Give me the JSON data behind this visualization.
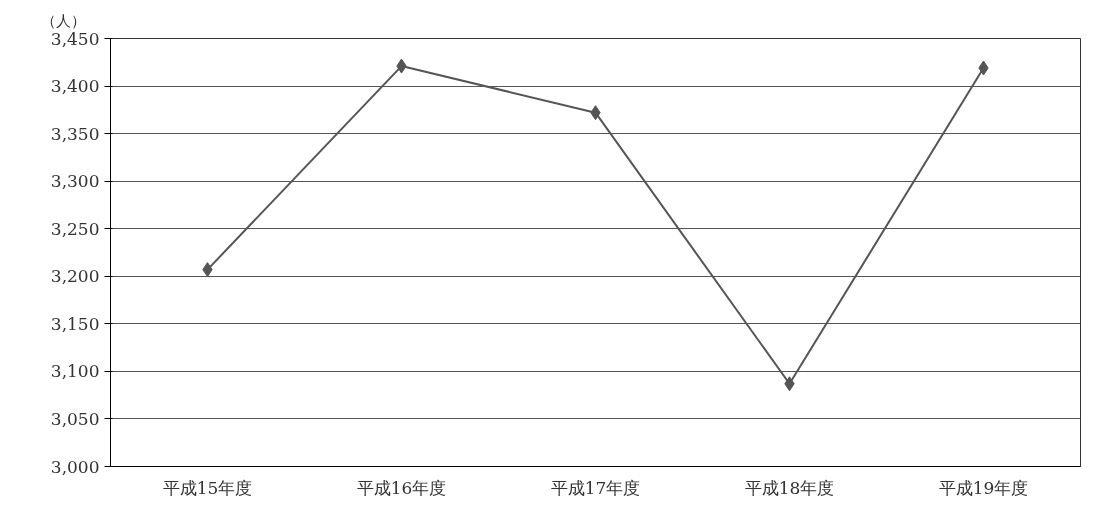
{
  "chart_data": {
    "type": "line",
    "ylabel": "（人）",
    "categories": [
      "平成15年度",
      "平成16年度",
      "平成17年度",
      "平成18年度",
      "平成19年度"
    ],
    "series": [
      {
        "color": "#555555",
        "values": [
          3207,
          3421,
          3372,
          3087,
          3419
        ]
      }
    ],
    "ylim": [
      3000,
      3450
    ],
    "yticks": [
      {
        "value": 3000,
        "label": "3,000"
      },
      {
        "value": 3050,
        "label": "3,050"
      },
      {
        "value": 3100,
        "label": "3,100"
      },
      {
        "value": 3150,
        "label": "3,150"
      },
      {
        "value": 3200,
        "label": "3,200"
      },
      {
        "value": 3250,
        "label": "3,250"
      },
      {
        "value": 3300,
        "label": "3,300"
      },
      {
        "value": 3350,
        "label": "3,350"
      },
      {
        "value": 3400,
        "label": "3,400"
      },
      {
        "value": 3450,
        "label": "3,450"
      }
    ],
    "grid": "y",
    "marker": "diamond",
    "line_style": "solid"
  }
}
